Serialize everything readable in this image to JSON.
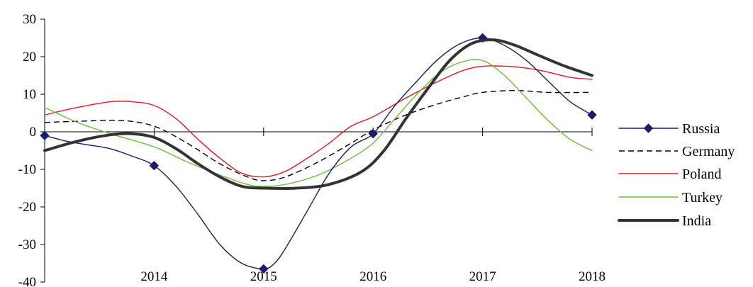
{
  "chart_data": {
    "type": "line",
    "title": "",
    "xlabel": "",
    "ylabel": "",
    "ylim": [
      -40,
      30
    ],
    "yticks": [
      30,
      20,
      10,
      0,
      -10,
      -20,
      -30,
      -40
    ],
    "xticks": [
      {
        "label": "2014",
        "x": 2014
      },
      {
        "label": "2015",
        "x": 2015
      },
      {
        "label": "2016",
        "x": 2016
      },
      {
        "label": "2017",
        "x": 2017
      },
      {
        "label": "2018",
        "x": 2018
      }
    ],
    "xlim": [
      2013,
      2018
    ],
    "grid": false,
    "legend_position": "right",
    "series": [
      {
        "name": "Russia",
        "color": "#1a1a6e",
        "style": "solid-diamond",
        "markers": [
          [
            2013,
            -1
          ],
          [
            2014,
            -9
          ],
          [
            2015,
            -36.5
          ],
          [
            2016,
            -0.5
          ],
          [
            2017,
            25
          ],
          [
            2018,
            4.5
          ]
        ],
        "points": [
          [
            2013,
            -1
          ],
          [
            2013.2,
            -2.5
          ],
          [
            2013.4,
            -3.5
          ],
          [
            2013.6,
            -4.5
          ],
          [
            2013.8,
            -6.5
          ],
          [
            2014,
            -9
          ],
          [
            2014.2,
            -14.5
          ],
          [
            2014.4,
            -22
          ],
          [
            2014.6,
            -30
          ],
          [
            2014.8,
            -35
          ],
          [
            2015,
            -36.5
          ],
          [
            2015.1,
            -35
          ],
          [
            2015.2,
            -31
          ],
          [
            2015.4,
            -21
          ],
          [
            2015.6,
            -11
          ],
          [
            2015.8,
            -4
          ],
          [
            2016,
            -0.5
          ],
          [
            2016.2,
            7
          ],
          [
            2016.4,
            13.5
          ],
          [
            2016.6,
            19.5
          ],
          [
            2016.8,
            23.5
          ],
          [
            2017,
            25
          ],
          [
            2017.2,
            23
          ],
          [
            2017.4,
            19
          ],
          [
            2017.6,
            13.5
          ],
          [
            2017.8,
            8
          ],
          [
            2018,
            4.5
          ]
        ]
      },
      {
        "name": "Germany",
        "color": "#000000",
        "style": "dashed",
        "points": [
          [
            2013,
            2.5
          ],
          [
            2013.3,
            2.8
          ],
          [
            2013.7,
            3
          ],
          [
            2014,
            1.5
          ],
          [
            2014.3,
            -3
          ],
          [
            2014.6,
            -8.5
          ],
          [
            2014.85,
            -12
          ],
          [
            2015,
            -13
          ],
          [
            2015.2,
            -12
          ],
          [
            2015.5,
            -8
          ],
          [
            2015.8,
            -3
          ],
          [
            2016,
            0.5
          ],
          [
            2016.3,
            4.5
          ],
          [
            2016.6,
            7.5
          ],
          [
            2016.85,
            9.5
          ],
          [
            2017,
            10.5
          ],
          [
            2017.3,
            11
          ],
          [
            2017.6,
            10.5
          ],
          [
            2018,
            10.5
          ]
        ]
      },
      {
        "name": "Poland",
        "color": "#e41a1c",
        "style": "solid",
        "points": [
          [
            2013,
            4.5
          ],
          [
            2013.3,
            6.5
          ],
          [
            2013.6,
            8
          ],
          [
            2013.8,
            8
          ],
          [
            2014,
            7
          ],
          [
            2014.2,
            3.5
          ],
          [
            2014.4,
            -2
          ],
          [
            2014.6,
            -7
          ],
          [
            2014.8,
            -11
          ],
          [
            2015,
            -12
          ],
          [
            2015.2,
            -10.5
          ],
          [
            2015.4,
            -7
          ],
          [
            2015.6,
            -3
          ],
          [
            2015.8,
            1.5
          ],
          [
            2016,
            4
          ],
          [
            2016.3,
            9
          ],
          [
            2016.6,
            13.5
          ],
          [
            2016.9,
            17
          ],
          [
            2017.2,
            17.5
          ],
          [
            2017.5,
            16.5
          ],
          [
            2017.8,
            14.5
          ],
          [
            2018,
            14
          ]
        ]
      },
      {
        "name": "Turkey",
        "color": "#6abf3a",
        "style": "solid",
        "points": [
          [
            2013,
            6.5
          ],
          [
            2013.3,
            2.5
          ],
          [
            2013.6,
            -0.5
          ],
          [
            2014,
            -4
          ],
          [
            2014.3,
            -8
          ],
          [
            2014.6,
            -11.5
          ],
          [
            2014.85,
            -14
          ],
          [
            2015,
            -14.5
          ],
          [
            2015.2,
            -14
          ],
          [
            2015.5,
            -11.5
          ],
          [
            2015.8,
            -7
          ],
          [
            2016,
            -3
          ],
          [
            2016.2,
            3.5
          ],
          [
            2016.4,
            10
          ],
          [
            2016.6,
            15.5
          ],
          [
            2016.8,
            18.5
          ],
          [
            2017,
            19
          ],
          [
            2017.2,
            15
          ],
          [
            2017.4,
            9
          ],
          [
            2017.6,
            3
          ],
          [
            2017.8,
            -2
          ],
          [
            2018,
            -5
          ]
        ]
      },
      {
        "name": "India",
        "color": "#333333",
        "style": "thick",
        "points": [
          [
            2013,
            -5
          ],
          [
            2013.3,
            -2.5
          ],
          [
            2013.6,
            -0.8
          ],
          [
            2013.8,
            -0.5
          ],
          [
            2014,
            -1.5
          ],
          [
            2014.2,
            -4.5
          ],
          [
            2014.4,
            -8.5
          ],
          [
            2014.6,
            -12
          ],
          [
            2014.8,
            -14.5
          ],
          [
            2015,
            -15
          ],
          [
            2015.3,
            -15
          ],
          [
            2015.6,
            -14
          ],
          [
            2015.9,
            -10.5
          ],
          [
            2016.1,
            -5
          ],
          [
            2016.3,
            3.5
          ],
          [
            2016.5,
            11.5
          ],
          [
            2016.7,
            19
          ],
          [
            2016.9,
            23.5
          ],
          [
            2017.1,
            24.5
          ],
          [
            2017.3,
            23
          ],
          [
            2017.5,
            20.5
          ],
          [
            2017.75,
            17.5
          ],
          [
            2018,
            15
          ]
        ]
      }
    ]
  }
}
